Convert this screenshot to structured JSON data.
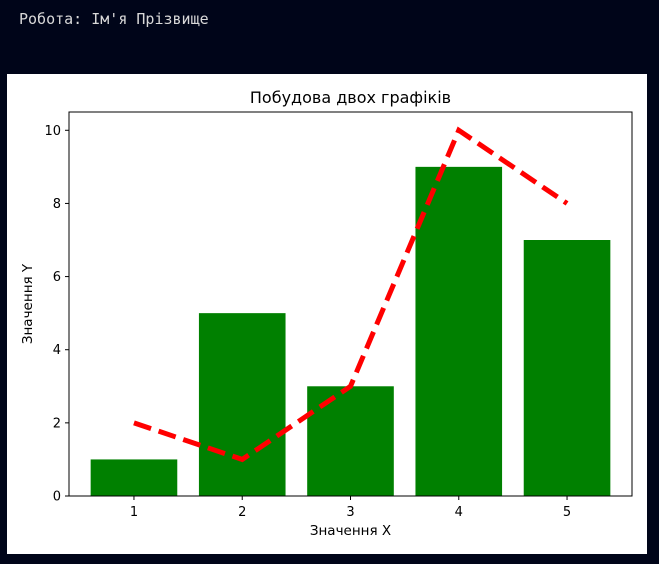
{
  "console": {
    "text": "Робота: Ім'я Прізвище"
  },
  "chart_data": {
    "type": "bar",
    "title": "Побудова двох графіків",
    "xlabel": "Значення X",
    "ylabel": "Значення Y",
    "x": [
      1,
      2,
      3,
      4,
      5
    ],
    "xticks": [
      "1",
      "2",
      "3",
      "4",
      "5"
    ],
    "yticks": [
      "0",
      "2",
      "4",
      "6",
      "8",
      "10"
    ],
    "xlim": [
      0.4,
      5.6
    ],
    "ylim": [
      0,
      10.5
    ],
    "grid": false,
    "series": [
      {
        "type": "bar",
        "values": [
          1,
          5,
          3,
          9,
          7
        ],
        "color": "#008000"
      },
      {
        "type": "line",
        "values": [
          2,
          1,
          3,
          10,
          8
        ],
        "color": "#ff0000",
        "linestyle": "dashed"
      }
    ]
  }
}
